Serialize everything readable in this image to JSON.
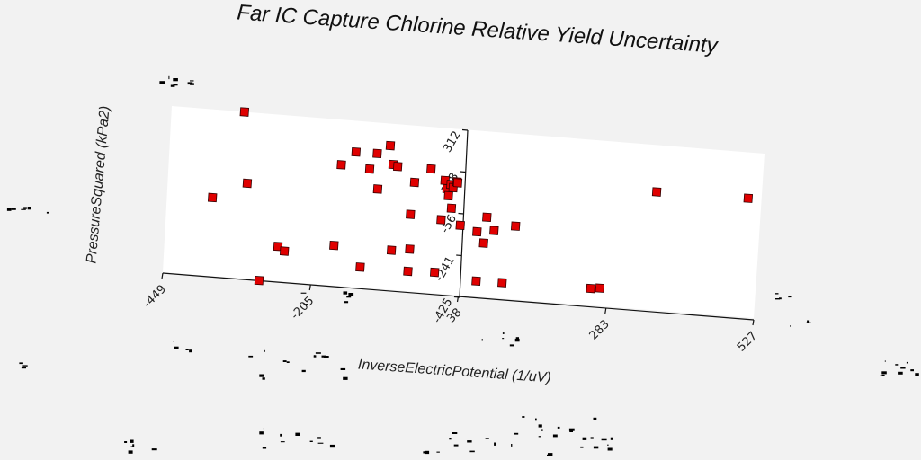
{
  "colors": {
    "background": "#f2f2f2",
    "plot_background": "#ffffff",
    "marker_fill": "#e00000",
    "marker_edge": "#330000",
    "noise": "#000000"
  },
  "chart_data": {
    "type": "scatter",
    "title": "Far IC Capture Chlorine Relative Yield Uncertainty",
    "xlabel": "InverseElectricPotential (1/uV)",
    "ylabel": "PressureSquared (kPa2)",
    "x_ticks": [
      "-449",
      "-205",
      "38",
      "283",
      "527"
    ],
    "y_ticks": [
      "-425",
      "-241",
      "-56",
      "128",
      "312"
    ],
    "xlim": [
      -449,
      527
    ],
    "ylim": [
      -425,
      312
    ],
    "grid": false,
    "legend": "none",
    "marker": "square",
    "points": [
      {
        "x": -374,
        "y": -76
      },
      {
        "x": -329,
        "y": 311
      },
      {
        "x": -318,
        "y": -1
      },
      {
        "x": -290,
        "y": -424
      },
      {
        "x": -262,
        "y": -268
      },
      {
        "x": -251,
        "y": -286
      },
      {
        "x": -170,
        "y": -244
      },
      {
        "x": -165,
        "y": 113
      },
      {
        "x": -142,
        "y": 174
      },
      {
        "x": -125,
        "y": -330
      },
      {
        "x": -118,
        "y": 104
      },
      {
        "x": -107,
        "y": 175
      },
      {
        "x": -103,
        "y": 19
      },
      {
        "x": -86,
        "y": 214
      },
      {
        "x": -80,
        "y": 132
      },
      {
        "x": -75,
        "y": -245
      },
      {
        "x": -72,
        "y": 125
      },
      {
        "x": -47,
        "y": -81
      },
      {
        "x": -46,
        "y": -332
      },
      {
        "x": -45,
        "y": -234
      },
      {
        "x": -43,
        "y": 61
      },
      {
        "x": -17,
        "y": 126
      },
      {
        "x": -2,
        "y": -327
      },
      {
        "x": 4,
        "y": -94
      },
      {
        "x": 7,
        "y": 80
      },
      {
        "x": 11,
        "y": 44
      },
      {
        "x": 14,
        "y": 14
      },
      {
        "x": 17,
        "y": 64
      },
      {
        "x": 20,
        "y": -40
      },
      {
        "x": 21,
        "y": 51
      },
      {
        "x": 27,
        "y": 78
      },
      {
        "x": 28,
        "y": 74
      },
      {
        "x": 36,
        "y": -112
      },
      {
        "x": 64,
        "y": -134
      },
      {
        "x": 67,
        "y": -351
      },
      {
        "x": 76,
        "y": -182
      },
      {
        "x": 79,
        "y": -67
      },
      {
        "x": 92,
        "y": -123
      },
      {
        "x": 110,
        "y": -349
      },
      {
        "x": 127,
        "y": -96
      },
      {
        "x": 256,
        "y": -344
      },
      {
        "x": 271,
        "y": -339
      },
      {
        "x": 356,
        "y": 103
      },
      {
        "x": 507,
        "y": 107
      }
    ]
  }
}
